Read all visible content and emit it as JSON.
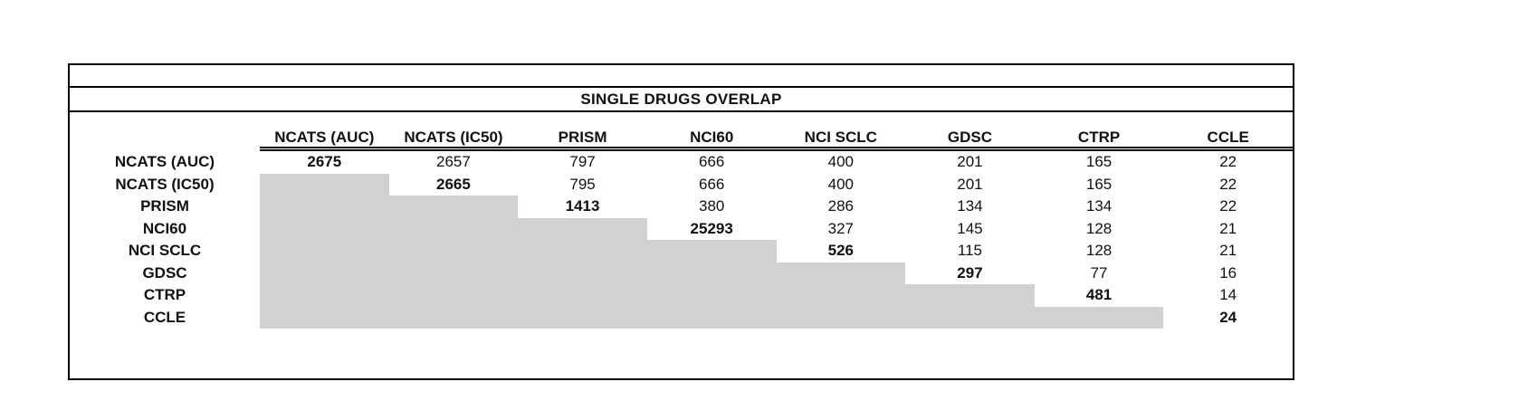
{
  "colors": {
    "shaded_fill": "#d1d1d1",
    "border": "#000000",
    "text": "#111111",
    "background": "#ffffff"
  },
  "chart_data": {
    "type": "table",
    "title": "SINGLE DRUGS OVERLAP",
    "columns": [
      "NCATS (AUC)",
      "NCATS (IC50)",
      "PRISM",
      "NCI60",
      "NCI SCLC",
      "GDSC",
      "CTRP",
      "CCLE"
    ],
    "rows": [
      "NCATS (AUC)",
      "NCATS (IC50)",
      "PRISM",
      "NCI60",
      "NCI SCLC",
      "GDSC",
      "CTRP",
      "CCLE"
    ],
    "matrix": [
      [
        2675,
        2657,
        797,
        666,
        400,
        201,
        165,
        22
      ],
      [
        null,
        2665,
        795,
        666,
        400,
        201,
        165,
        22
      ],
      [
        null,
        null,
        1413,
        380,
        286,
        134,
        134,
        22
      ],
      [
        null,
        null,
        null,
        25293,
        327,
        145,
        128,
        21
      ],
      [
        null,
        null,
        null,
        null,
        526,
        115,
        128,
        21
      ],
      [
        null,
        null,
        null,
        null,
        null,
        297,
        77,
        16
      ],
      [
        null,
        null,
        null,
        null,
        null,
        null,
        481,
        14
      ],
      [
        null,
        null,
        null,
        null,
        null,
        null,
        null,
        24
      ]
    ],
    "diagonal_bold": true,
    "lower_triangle_shaded": true,
    "legend_position": "none",
    "grid": false
  }
}
